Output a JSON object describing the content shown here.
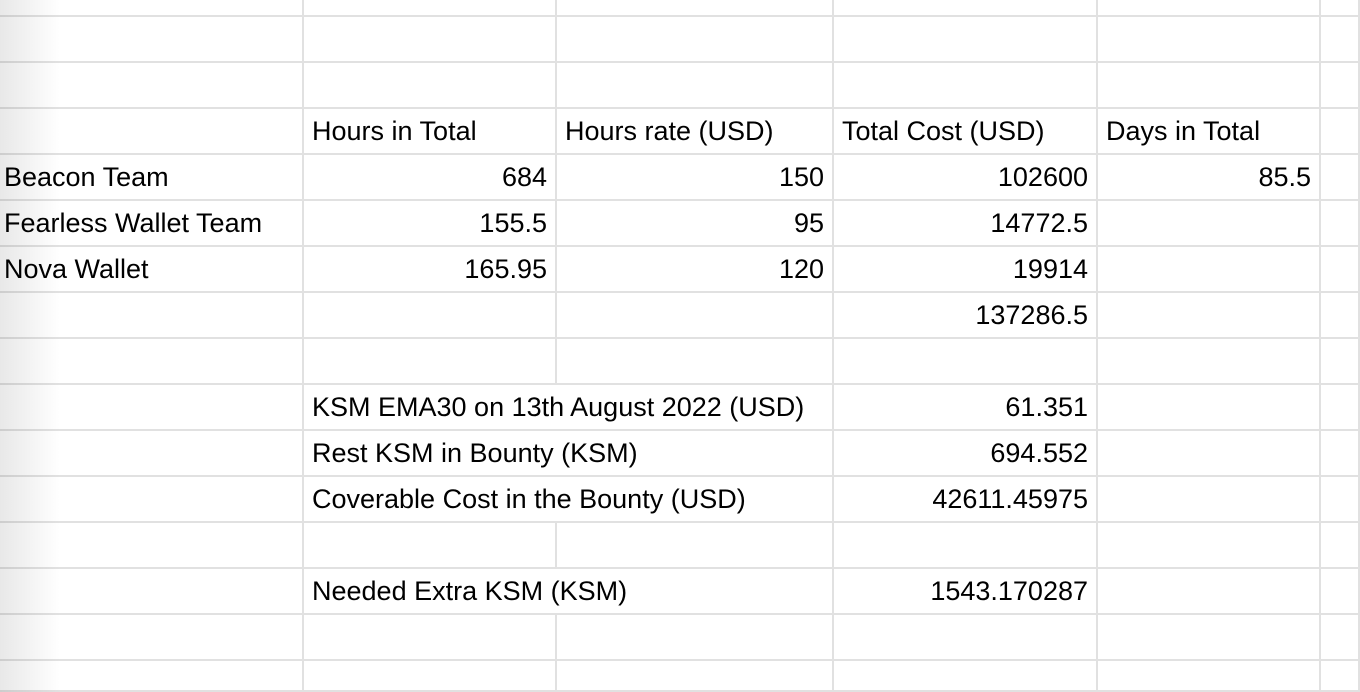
{
  "sheet": {
    "header_row": {
      "hours_total": "Hours in Total",
      "hours_rate": "Hours rate (USD)",
      "total_cost": "Total Cost (USD)",
      "days_total": "Days in Total"
    },
    "rows": [
      {
        "team": "Beacon Team",
        "hours_total": "684",
        "hours_rate": "150",
        "total_cost": "102600",
        "days_total": "85.5"
      },
      {
        "team": "Fearless Wallet Team",
        "hours_total": "155.5",
        "hours_rate": "95",
        "total_cost": "14772.5",
        "days_total": ""
      },
      {
        "team": "Nova Wallet",
        "hours_total": "165.95",
        "hours_rate": "120",
        "total_cost": "19914",
        "days_total": ""
      }
    ],
    "sum_total_cost": "137286.5",
    "summary": [
      {
        "label": "KSM EMA30 on 13th August 2022 (USD)",
        "value": "61.351"
      },
      {
        "label": "Rest KSM in Bounty (KSM)",
        "value": "694.552"
      },
      {
        "label": "Coverable Cost in the Bounty (USD)",
        "value": "42611.45975"
      }
    ],
    "needed_extra": {
      "label": "Needed Extra KSM (KSM)",
      "value": "1543.170287"
    }
  }
}
